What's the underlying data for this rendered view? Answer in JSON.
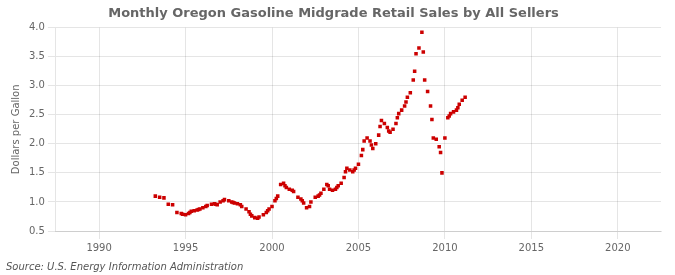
{
  "chart_data": {
    "type": "scatter",
    "title": "Monthly Oregon Gasoline Midgrade Retail Sales by All Sellers",
    "ylabel": "Dollars per Gallon",
    "annotation": "Source: U.S. Energy Information Administration",
    "color": "#cc0000",
    "marker": "square",
    "grid": true,
    "xlim": [
      1987.5,
      2022.5
    ],
    "ylim": [
      0.5,
      4.0
    ],
    "xticks": [
      1990,
      1995,
      2000,
      2005,
      2010,
      2015,
      2020
    ],
    "yticks": [
      0.5,
      {
        "value": 1.0,
        "label": "1.0"
      },
      1.5,
      {
        "value": 2.0,
        "label": "2.0"
      },
      2.5,
      {
        "value": 3.0,
        "label": "3.0"
      },
      3.5,
      {
        "value": 4.0,
        "label": "4.0"
      }
    ],
    "x": [
      1993.25,
      1993.5,
      1993.75,
      1994.0,
      1994.25,
      1994.5,
      1994.75,
      1994.83,
      1995.0,
      1995.17,
      1995.25,
      1995.33,
      1995.5,
      1995.67,
      1995.75,
      1995.83,
      1996.0,
      1996.17,
      1996.25,
      1996.5,
      1996.67,
      1996.75,
      1996.83,
      1997.0,
      1997.17,
      1997.25,
      1997.5,
      1997.67,
      1997.75,
      1997.83,
      1998.0,
      1998.17,
      1998.25,
      1998.5,
      1998.67,
      1998.75,
      1998.83,
      1999.0,
      1999.17,
      1999.25,
      1999.5,
      1999.67,
      1999.75,
      1999.83,
      2000.0,
      2000.17,
      2000.25,
      2000.33,
      2000.5,
      2000.67,
      2000.75,
      2000.83,
      2001.0,
      2001.17,
      2001.25,
      2001.5,
      2001.67,
      2001.75,
      2001.83,
      2002.0,
      2002.17,
      2002.25,
      2002.5,
      2002.67,
      2002.75,
      2002.83,
      2003.0,
      2003.17,
      2003.25,
      2003.33,
      2003.5,
      2003.67,
      2003.75,
      2003.83,
      2004.0,
      2004.17,
      2004.25,
      2004.33,
      2004.5,
      2004.67,
      2004.75,
      2004.83,
      2005.0,
      2005.17,
      2005.25,
      2005.33,
      2005.5,
      2005.67,
      2005.75,
      2005.83,
      2006.0,
      2006.17,
      2006.25,
      2006.33,
      2006.5,
      2006.67,
      2006.75,
      2006.83,
      2007.0,
      2007.17,
      2007.25,
      2007.33,
      2007.5,
      2007.67,
      2007.75,
      2007.83,
      2008.0,
      2008.17,
      2008.25,
      2008.33,
      2008.5,
      2008.67,
      2008.75,
      2008.83,
      2009.0,
      2009.17,
      2009.25,
      2009.33,
      2009.5,
      2009.67,
      2009.75,
      2009.83,
      2010.0,
      2010.17,
      2010.25,
      2010.33,
      2010.5,
      2010.67,
      2010.75,
      2010.83,
      2011.0,
      2011.17
    ],
    "values": [
      1.1,
      1.08,
      1.07,
      0.96,
      0.95,
      0.82,
      0.8,
      0.79,
      0.78,
      0.8,
      0.82,
      0.84,
      0.85,
      0.86,
      0.87,
      0.88,
      0.9,
      0.92,
      0.94,
      0.96,
      0.97,
      0.96,
      0.95,
      1.0,
      1.02,
      1.04,
      1.02,
      1.0,
      0.99,
      0.98,
      0.97,
      0.95,
      0.92,
      0.88,
      0.83,
      0.79,
      0.76,
      0.73,
      0.72,
      0.74,
      0.78,
      0.82,
      0.85,
      0.88,
      0.92,
      1.02,
      1.06,
      1.1,
      1.3,
      1.32,
      1.28,
      1.25,
      1.22,
      1.2,
      1.18,
      1.08,
      1.05,
      1.02,
      0.98,
      0.9,
      0.92,
      1.0,
      1.08,
      1.1,
      1.12,
      1.15,
      1.22,
      1.3,
      1.28,
      1.22,
      1.2,
      1.22,
      1.25,
      1.28,
      1.32,
      1.42,
      1.52,
      1.58,
      1.55,
      1.52,
      1.55,
      1.58,
      1.65,
      1.8,
      1.9,
      2.05,
      2.1,
      2.05,
      1.98,
      1.92,
      2.0,
      2.15,
      2.3,
      2.4,
      2.35,
      2.28,
      2.22,
      2.2,
      2.25,
      2.35,
      2.45,
      2.52,
      2.58,
      2.65,
      2.72,
      2.8,
      2.88,
      3.1,
      3.25,
      3.55,
      3.65,
      3.92,
      3.58,
      3.1,
      2.9,
      2.65,
      2.42,
      2.1,
      2.08,
      1.95,
      1.85,
      1.5,
      2.1,
      2.45,
      2.48,
      2.52,
      2.55,
      2.58,
      2.62,
      2.68,
      2.75,
      2.8
    ]
  }
}
